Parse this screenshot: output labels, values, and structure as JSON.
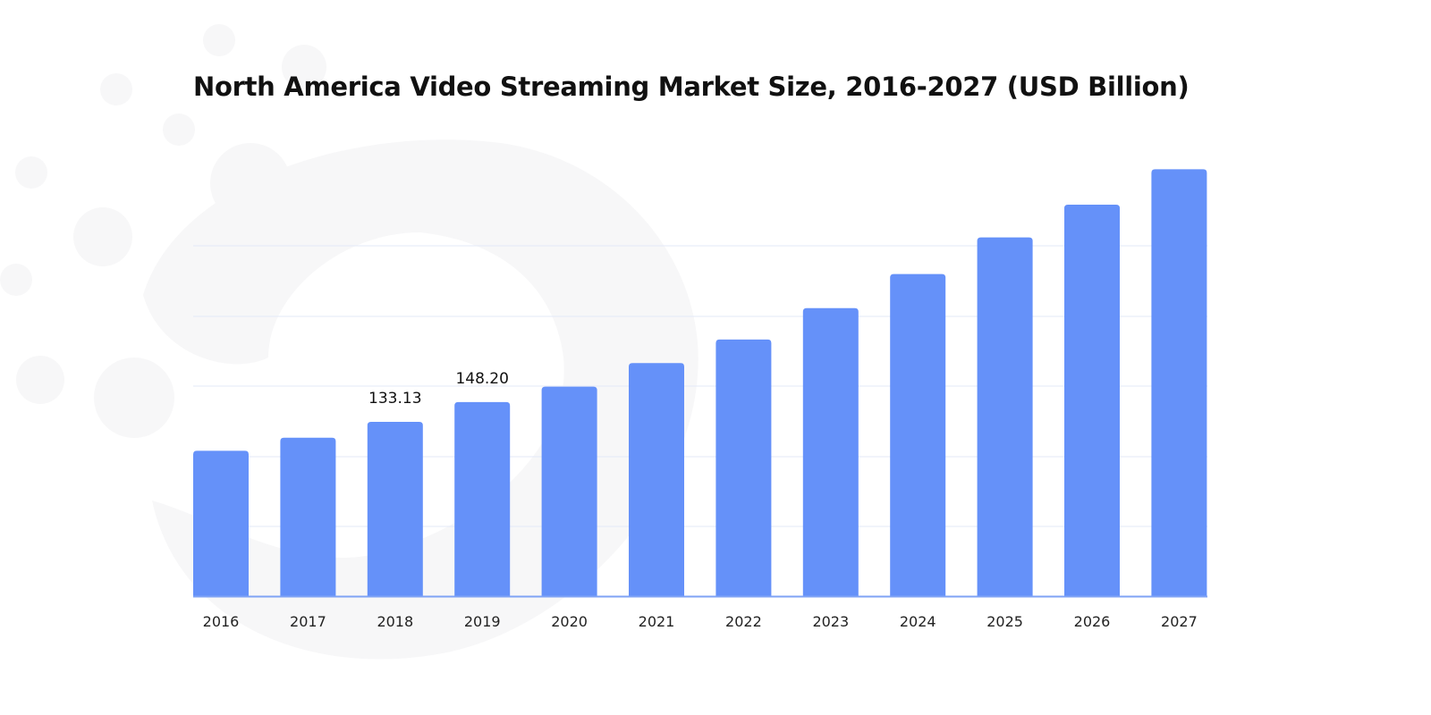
{
  "chart_data": {
    "type": "bar",
    "title": "North America Video Streaming Market Size, 2016-2027 (USD Billion)",
    "xlabel": "",
    "ylabel": "",
    "categories": [
      "2016",
      "2017",
      "2018",
      "2019",
      "2020",
      "2021",
      "2022",
      "2023",
      "2024",
      "2025",
      "2026",
      "2027"
    ],
    "values": [
      111,
      121,
      133.13,
      148.2,
      160,
      178,
      196,
      220,
      246,
      274,
      299,
      326
    ],
    "data_labels": {
      "2018": "133.13",
      "2019": "148.20"
    },
    "ylim": [
      0,
      330
    ],
    "grid": true,
    "bar_color": "#6591F9",
    "grid_color": "#E3E8F7",
    "baseline_color": "#7FA3F5"
  }
}
